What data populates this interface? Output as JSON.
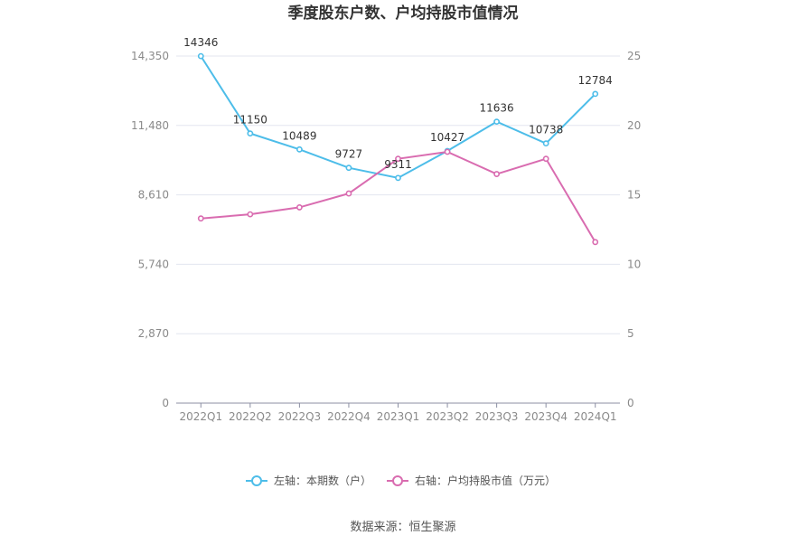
{
  "chart_data": {
    "type": "line",
    "title": "季度股东户数、户均持股市值情况",
    "categories": [
      "2022Q1",
      "2022Q2",
      "2022Q3",
      "2022Q4",
      "2023Q1",
      "2023Q2",
      "2023Q3",
      "2023Q4",
      "2024Q1"
    ],
    "left_axis": {
      "ticks": [
        "0",
        "2,870",
        "5,740",
        "8,610",
        "11,480",
        "14,350"
      ],
      "ylim": [
        0,
        14350
      ]
    },
    "right_axis": {
      "ticks": [
        "0",
        "5",
        "10",
        "15",
        "20",
        "25"
      ],
      "ylim": [
        0,
        25
      ]
    },
    "series": [
      {
        "name": "左轴：本期数（户）",
        "axis": "left",
        "color": "#4dbde9",
        "values": [
          14346,
          11150,
          10489,
          9727,
          9311,
          10427,
          11636,
          10738,
          12784
        ],
        "labels": [
          "14346",
          "11150",
          "10489",
          "9727",
          "9311",
          "10427",
          "11636",
          "10738",
          "12784"
        ]
      },
      {
        "name": "右轴：户均持股市值（万元）",
        "axis": "right",
        "color": "#d96cb0",
        "values": [
          13.3,
          13.6,
          14.1,
          15.1,
          17.6,
          18.1,
          16.5,
          17.6,
          11.6
        ]
      }
    ],
    "grid": true,
    "legend_position": "bottom"
  },
  "footer": {
    "source": "数据来源：恒生聚源"
  }
}
